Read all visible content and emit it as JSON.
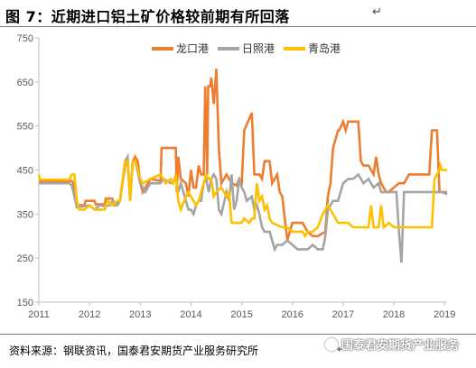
{
  "header": {
    "title": "图 7：近期进口铝土矿价格较前期有所回落",
    "return_mark": "↵"
  },
  "footer": {
    "source": "资料来源：钢联资讯，国泰君安期货产业服务研究所",
    "return_mark": "↵"
  },
  "watermark": {
    "text": "国泰君安期货产业服务",
    "icon": "wechat-icon"
  },
  "chart_data": {
    "type": "line",
    "xlabel": "",
    "ylabel": "",
    "xlim": [
      2011.0,
      2019.05
    ],
    "ylim": [
      150,
      750
    ],
    "y_ticks": [
      150,
      250,
      350,
      450,
      550,
      650,
      750
    ],
    "x_ticks": [
      2011,
      2012,
      2013,
      2014,
      2015,
      2016,
      2017,
      2018,
      2019
    ],
    "grid": false,
    "legend_position": "top",
    "series": [
      {
        "name": "龙口港",
        "color": "#ED7D31",
        "points": [
          [
            2011.0,
            425
          ],
          [
            2011.65,
            425
          ],
          [
            2011.68,
            420
          ],
          [
            2011.75,
            370
          ],
          [
            2011.9,
            370
          ],
          [
            2011.92,
            380
          ],
          [
            2012.1,
            380
          ],
          [
            2012.12,
            372
          ],
          [
            2012.3,
            372
          ],
          [
            2012.32,
            385
          ],
          [
            2012.45,
            385
          ],
          [
            2012.5,
            370
          ],
          [
            2012.6,
            380
          ],
          [
            2012.7,
            460
          ],
          [
            2012.75,
            470
          ],
          [
            2012.8,
            380
          ],
          [
            2012.85,
            470
          ],
          [
            2012.9,
            480
          ],
          [
            2012.95,
            470
          ],
          [
            2013.0,
            420
          ],
          [
            2013.05,
            400
          ],
          [
            2013.2,
            430
          ],
          [
            2013.4,
            425
          ],
          [
            2013.42,
            500
          ],
          [
            2013.7,
            500
          ],
          [
            2013.72,
            400
          ],
          [
            2013.75,
            480
          ],
          [
            2013.8,
            430
          ],
          [
            2013.9,
            420
          ],
          [
            2013.95,
            390
          ],
          [
            2014.0,
            450
          ],
          [
            2014.05,
            410
          ],
          [
            2014.1,
            410
          ],
          [
            2014.15,
            460
          ],
          [
            2014.2,
            440
          ],
          [
            2014.25,
            440
          ],
          [
            2014.28,
            640
          ],
          [
            2014.32,
            440
          ],
          [
            2014.34,
            640
          ],
          [
            2014.36,
            640
          ],
          [
            2014.38,
            640
          ],
          [
            2014.4,
            660
          ],
          [
            2014.45,
            600
          ],
          [
            2014.5,
            680
          ],
          [
            2014.55,
            500
          ],
          [
            2014.6,
            420
          ],
          [
            2014.7,
            440
          ],
          [
            2014.8,
            420
          ],
          [
            2014.9,
            415
          ],
          [
            2014.95,
            430
          ],
          [
            2015.0,
            420
          ],
          [
            2015.05,
            540
          ],
          [
            2015.2,
            580
          ],
          [
            2015.25,
            440
          ],
          [
            2015.35,
            440
          ],
          [
            2015.4,
            430
          ],
          [
            2015.45,
            470
          ],
          [
            2015.55,
            470
          ],
          [
            2015.6,
            420
          ],
          [
            2015.7,
            440
          ],
          [
            2015.75,
            400
          ],
          [
            2015.8,
            390
          ],
          [
            2015.9,
            290
          ],
          [
            2016.0,
            330
          ],
          [
            2016.1,
            330
          ],
          [
            2016.2,
            330
          ],
          [
            2016.3,
            310
          ],
          [
            2016.4,
            300
          ],
          [
            2016.5,
            300
          ],
          [
            2016.65,
            310
          ],
          [
            2016.7,
            390
          ],
          [
            2016.75,
            420
          ],
          [
            2016.8,
            500
          ],
          [
            2016.9,
            540
          ],
          [
            2016.92,
            540
          ],
          [
            2017.0,
            560
          ],
          [
            2017.05,
            540
          ],
          [
            2017.1,
            560
          ],
          [
            2017.3,
            560
          ],
          [
            2017.35,
            470
          ],
          [
            2017.4,
            460
          ],
          [
            2017.5,
            460
          ],
          [
            2017.6,
            440
          ],
          [
            2017.65,
            480
          ],
          [
            2017.7,
            440
          ],
          [
            2017.75,
            420
          ],
          [
            2017.85,
            400
          ],
          [
            2017.9,
            400
          ],
          [
            2018.0,
            410
          ],
          [
            2018.1,
            420
          ],
          [
            2018.2,
            420
          ],
          [
            2018.3,
            440
          ],
          [
            2018.5,
            440
          ],
          [
            2018.7,
            440
          ],
          [
            2018.75,
            540
          ],
          [
            2018.85,
            540
          ],
          [
            2018.9,
            400
          ],
          [
            2019.05,
            400
          ]
        ]
      },
      {
        "name": "日照港",
        "color": "#A5A5A5",
        "points": [
          [
            2011.0,
            420
          ],
          [
            2011.6,
            420
          ],
          [
            2011.65,
            415
          ],
          [
            2011.75,
            365
          ],
          [
            2012.0,
            370
          ],
          [
            2012.1,
            360
          ],
          [
            2012.2,
            370
          ],
          [
            2012.3,
            368
          ],
          [
            2012.4,
            370
          ],
          [
            2012.45,
            380
          ],
          [
            2012.55,
            370
          ],
          [
            2012.6,
            380
          ],
          [
            2012.7,
            470
          ],
          [
            2012.75,
            480
          ],
          [
            2012.8,
            380
          ],
          [
            2012.85,
            470
          ],
          [
            2012.9,
            470
          ],
          [
            2013.0,
            420
          ],
          [
            2013.1,
            400
          ],
          [
            2013.2,
            420
          ],
          [
            2013.4,
            420
          ],
          [
            2013.45,
            430
          ],
          [
            2013.6,
            420
          ],
          [
            2013.7,
            430
          ],
          [
            2013.75,
            400
          ],
          [
            2013.8,
            420
          ],
          [
            2013.85,
            400
          ],
          [
            2013.9,
            380
          ],
          [
            2013.95,
            360
          ],
          [
            2014.0,
            360
          ],
          [
            2014.05,
            350
          ],
          [
            2014.1,
            370
          ],
          [
            2014.15,
            380
          ],
          [
            2014.2,
            380
          ],
          [
            2014.25,
            420
          ],
          [
            2014.3,
            430
          ],
          [
            2014.35,
            400
          ],
          [
            2014.4,
            430
          ],
          [
            2014.45,
            440
          ],
          [
            2014.5,
            430
          ],
          [
            2014.55,
            360
          ],
          [
            2014.6,
            350
          ],
          [
            2014.7,
            400
          ],
          [
            2014.75,
            380
          ],
          [
            2014.8,
            440
          ],
          [
            2014.85,
            360
          ],
          [
            2014.9,
            380
          ],
          [
            2014.95,
            430
          ],
          [
            2015.0,
            410
          ],
          [
            2015.05,
            400
          ],
          [
            2015.1,
            380
          ],
          [
            2015.2,
            390
          ],
          [
            2015.25,
            360
          ],
          [
            2015.3,
            370
          ],
          [
            2015.35,
            350
          ],
          [
            2015.4,
            320
          ],
          [
            2015.45,
            310
          ],
          [
            2015.55,
            310
          ],
          [
            2015.6,
            290
          ],
          [
            2015.65,
            270
          ],
          [
            2015.7,
            280
          ],
          [
            2015.8,
            280
          ],
          [
            2015.9,
            290
          ],
          [
            2016.0,
            280
          ],
          [
            2016.1,
            270
          ],
          [
            2016.2,
            270
          ],
          [
            2016.3,
            270
          ],
          [
            2016.4,
            280
          ],
          [
            2016.5,
            270
          ],
          [
            2016.6,
            270
          ],
          [
            2016.65,
            300
          ],
          [
            2016.7,
            360
          ],
          [
            2016.8,
            380
          ],
          [
            2016.9,
            380
          ],
          [
            2017.0,
            420
          ],
          [
            2017.1,
            430
          ],
          [
            2017.2,
            430
          ],
          [
            2017.3,
            440
          ],
          [
            2017.4,
            420
          ],
          [
            2017.5,
            430
          ],
          [
            2017.6,
            410
          ],
          [
            2017.7,
            420
          ],
          [
            2017.75,
            400
          ],
          [
            2017.8,
            400
          ],
          [
            2017.9,
            400
          ],
          [
            2018.0,
            400
          ],
          [
            2018.05,
            400
          ],
          [
            2018.1,
            310
          ],
          [
            2018.15,
            240
          ],
          [
            2018.2,
            400
          ],
          [
            2018.5,
            400
          ],
          [
            2018.7,
            400
          ],
          [
            2018.75,
            400
          ],
          [
            2018.9,
            400
          ],
          [
            2018.95,
            400
          ],
          [
            2019.05,
            395
          ]
        ]
      },
      {
        "name": "青岛港",
        "color": "#FFC000",
        "points": [
          [
            2011.0,
            440
          ],
          [
            2011.02,
            428
          ],
          [
            2011.6,
            428
          ],
          [
            2011.65,
            440
          ],
          [
            2011.7,
            440
          ],
          [
            2011.75,
            380
          ],
          [
            2011.8,
            360
          ],
          [
            2011.9,
            360
          ],
          [
            2012.0,
            370
          ],
          [
            2012.1,
            360
          ],
          [
            2012.3,
            360
          ],
          [
            2012.35,
            380
          ],
          [
            2012.45,
            370
          ],
          [
            2012.55,
            380
          ],
          [
            2012.6,
            380
          ],
          [
            2012.7,
            470
          ],
          [
            2012.75,
            470
          ],
          [
            2012.8,
            380
          ],
          [
            2012.85,
            470
          ],
          [
            2012.9,
            470
          ],
          [
            2013.0,
            430
          ],
          [
            2013.05,
            420
          ],
          [
            2013.2,
            430
          ],
          [
            2013.4,
            440
          ],
          [
            2013.5,
            420
          ],
          [
            2013.6,
            430
          ],
          [
            2013.65,
            420
          ],
          [
            2013.7,
            440
          ],
          [
            2013.75,
            380
          ],
          [
            2013.8,
            360
          ],
          [
            2013.9,
            390
          ],
          [
            2013.95,
            400
          ],
          [
            2014.0,
            390
          ],
          [
            2014.05,
            380
          ],
          [
            2014.1,
            370
          ],
          [
            2014.15,
            380
          ],
          [
            2014.25,
            420
          ],
          [
            2014.3,
            440
          ],
          [
            2014.35,
            430
          ],
          [
            2014.4,
            430
          ],
          [
            2014.45,
            390
          ],
          [
            2014.5,
            400
          ],
          [
            2014.6,
            410
          ],
          [
            2014.65,
            400
          ],
          [
            2014.7,
            390
          ],
          [
            2014.75,
            400
          ],
          [
            2014.8,
            330
          ],
          [
            2014.9,
            330
          ],
          [
            2015.0,
            330
          ],
          [
            2015.05,
            340
          ],
          [
            2015.15,
            330
          ],
          [
            2015.2,
            340
          ],
          [
            2015.25,
            340
          ],
          [
            2015.3,
            420
          ],
          [
            2015.35,
            380
          ],
          [
            2015.4,
            390
          ],
          [
            2015.45,
            360
          ],
          [
            2015.5,
            370
          ],
          [
            2015.55,
            340
          ],
          [
            2015.6,
            330
          ],
          [
            2015.8,
            320
          ],
          [
            2015.9,
            320
          ],
          [
            2016.0,
            310
          ],
          [
            2016.1,
            310
          ],
          [
            2016.2,
            310
          ],
          [
            2016.25,
            300
          ],
          [
            2016.3,
            310
          ],
          [
            2016.4,
            310
          ],
          [
            2016.5,
            320
          ],
          [
            2016.6,
            350
          ],
          [
            2016.7,
            370
          ],
          [
            2016.8,
            350
          ],
          [
            2016.9,
            330
          ],
          [
            2017.0,
            330
          ],
          [
            2017.1,
            330
          ],
          [
            2017.2,
            320
          ],
          [
            2017.4,
            320
          ],
          [
            2017.5,
            320
          ],
          [
            2017.55,
            370
          ],
          [
            2017.6,
            320
          ],
          [
            2017.7,
            320
          ],
          [
            2017.75,
            370
          ],
          [
            2017.8,
            320
          ],
          [
            2017.9,
            330
          ],
          [
            2018.0,
            320
          ],
          [
            2018.3,
            320
          ],
          [
            2018.6,
            320
          ],
          [
            2018.75,
            320
          ],
          [
            2018.8,
            430
          ],
          [
            2018.85,
            440
          ],
          [
            2018.9,
            450
          ],
          [
            2018.92,
            460
          ],
          [
            2018.95,
            450
          ],
          [
            2019.05,
            450
          ]
        ]
      }
    ]
  }
}
